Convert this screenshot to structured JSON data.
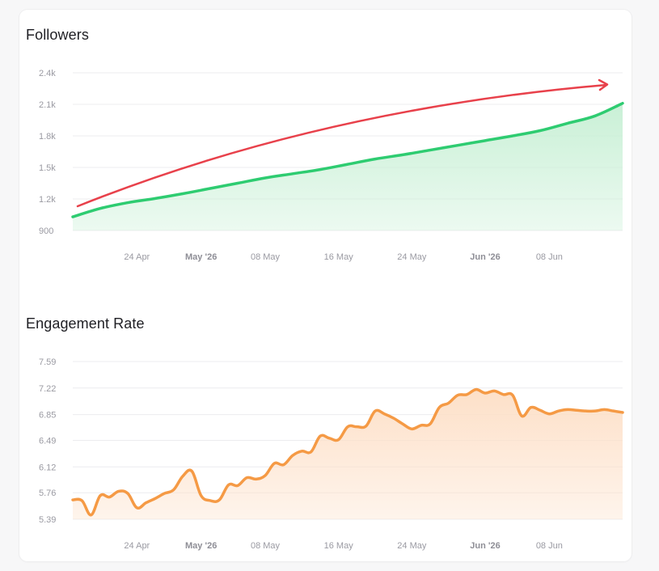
{
  "chart_data": [
    {
      "type": "area",
      "title": "Followers",
      "ylabel": "",
      "xlabel": "",
      "y_ticks": [
        "2.4k",
        "2.1k",
        "1.8k",
        "1.5k",
        "1.2k",
        "900"
      ],
      "y_tick_values": [
        2400,
        2100,
        1800,
        1500,
        1200,
        900
      ],
      "ylim": [
        900,
        2400
      ],
      "x_ticks": [
        {
          "label": "24 Apr",
          "date": "2026-04-24",
          "bold": false
        },
        {
          "label": "May '26",
          "date": "2026-05-01",
          "bold": true
        },
        {
          "label": "08 May",
          "date": "2026-05-08",
          "bold": false
        },
        {
          "label": "16 May",
          "date": "2026-05-16",
          "bold": false
        },
        {
          "label": "24 May",
          "date": "2026-05-24",
          "bold": false
        },
        {
          "label": "Jun '26",
          "date": "2026-06-01",
          "bold": true
        },
        {
          "label": "08 Jun",
          "date": "2026-06-08",
          "bold": false
        }
      ],
      "xlim": [
        "2026-04-17",
        "2026-06-16"
      ],
      "grid": true,
      "color": "#2ecc71",
      "fill_color": "#c9f0d6",
      "trend_arrow_color": "#e8414b",
      "series": [
        {
          "x": [
            "2026-04-17",
            "2026-04-20",
            "2026-04-23",
            "2026-04-26",
            "2026-04-29",
            "2026-05-02",
            "2026-05-05",
            "2026-05-08",
            "2026-05-11",
            "2026-05-14",
            "2026-05-17",
            "2026-05-20",
            "2026-05-23",
            "2026-05-26",
            "2026-05-29",
            "2026-06-01",
            "2026-06-04",
            "2026-06-07",
            "2026-06-10",
            "2026-06-13",
            "2026-06-16"
          ],
          "y": [
            1030,
            1110,
            1165,
            1205,
            1250,
            1300,
            1350,
            1400,
            1440,
            1480,
            1530,
            1580,
            1620,
            1665,
            1710,
            1755,
            1800,
            1850,
            1920,
            1990,
            2110
          ]
        }
      ]
    },
    {
      "type": "area",
      "title": "Engagement Rate",
      "ylabel": "",
      "xlabel": "",
      "y_ticks": [
        "7.59",
        "7.22",
        "6.85",
        "6.49",
        "6.12",
        "5.76",
        "5.39"
      ],
      "y_tick_values": [
        7.59,
        7.22,
        6.85,
        6.49,
        6.12,
        5.76,
        5.39
      ],
      "ylim": [
        5.39,
        7.59
      ],
      "x_ticks": [
        {
          "label": "24 Apr",
          "date": "2026-04-24",
          "bold": false
        },
        {
          "label": "May '26",
          "date": "2026-05-01",
          "bold": true
        },
        {
          "label": "08 May",
          "date": "2026-05-08",
          "bold": false
        },
        {
          "label": "16 May",
          "date": "2026-05-16",
          "bold": false
        },
        {
          "label": "24 May",
          "date": "2026-05-24",
          "bold": false
        },
        {
          "label": "Jun '26",
          "date": "2026-06-01",
          "bold": true
        },
        {
          "label": "08 Jun",
          "date": "2026-06-08",
          "bold": false
        }
      ],
      "xlim": [
        "2026-04-17",
        "2026-06-16"
      ],
      "grid": true,
      "color": "#f59a45",
      "fill_color": "#fde0c8",
      "series": [
        {
          "x": [
            "2026-04-17",
            "2026-04-18",
            "2026-04-19",
            "2026-04-20",
            "2026-04-21",
            "2026-04-22",
            "2026-04-23",
            "2026-04-24",
            "2026-04-25",
            "2026-04-26",
            "2026-04-27",
            "2026-04-28",
            "2026-04-29",
            "2026-04-30",
            "2026-05-01",
            "2026-05-02",
            "2026-05-03",
            "2026-05-04",
            "2026-05-05",
            "2026-05-06",
            "2026-05-07",
            "2026-05-08",
            "2026-05-09",
            "2026-05-10",
            "2026-05-11",
            "2026-05-12",
            "2026-05-13",
            "2026-05-14",
            "2026-05-15",
            "2026-05-16",
            "2026-05-17",
            "2026-05-18",
            "2026-05-19",
            "2026-05-20",
            "2026-05-21",
            "2026-05-22",
            "2026-05-23",
            "2026-05-24",
            "2026-05-25",
            "2026-05-26",
            "2026-05-27",
            "2026-05-28",
            "2026-05-29",
            "2026-05-30",
            "2026-05-31",
            "2026-06-01",
            "2026-06-02",
            "2026-06-03",
            "2026-06-04",
            "2026-06-05",
            "2026-06-06",
            "2026-06-07",
            "2026-06-08",
            "2026-06-09",
            "2026-06-10",
            "2026-06-11",
            "2026-06-12",
            "2026-06-13",
            "2026-06-14",
            "2026-06-15",
            "2026-06-16"
          ],
          "y": [
            5.66,
            5.65,
            5.45,
            5.72,
            5.7,
            5.78,
            5.75,
            5.55,
            5.62,
            5.68,
            5.75,
            5.8,
            5.99,
            6.06,
            5.72,
            5.65,
            5.66,
            5.87,
            5.86,
            5.97,
            5.95,
            6.0,
            6.17,
            6.15,
            6.28,
            6.34,
            6.33,
            6.55,
            6.52,
            6.5,
            6.68,
            6.68,
            6.69,
            6.9,
            6.86,
            6.8,
            6.72,
            6.65,
            6.7,
            6.72,
            6.95,
            7.01,
            7.12,
            7.13,
            7.2,
            7.15,
            7.18,
            7.13,
            7.12,
            6.83,
            6.95,
            6.91,
            6.86,
            6.9,
            6.92,
            6.91,
            6.9,
            6.9,
            6.92,
            6.9,
            6.88
          ]
        }
      ]
    }
  ]
}
